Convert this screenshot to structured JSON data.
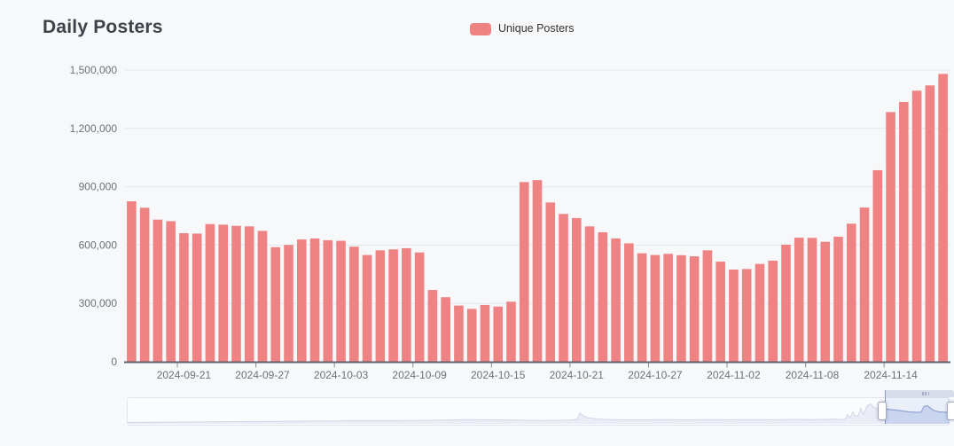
{
  "title": "Daily Posters",
  "legend": {
    "label": "Unique Posters",
    "color": "#ef8282"
  },
  "chart_data": {
    "type": "bar",
    "title": "Daily Posters",
    "series_name": "Unique Posters",
    "bar_color": "#ef8282",
    "grid": true,
    "legend_position": "top-center",
    "ylim": [
      0,
      1500000
    ],
    "ytick_values": [
      0,
      300000,
      600000,
      900000,
      1200000,
      1500000
    ],
    "ytick_labels": [
      "0",
      "300,000",
      "600,000",
      "900,000",
      "1,200,000",
      "1,500,000"
    ],
    "xtick_label_indices": [
      4,
      10,
      16,
      22,
      28,
      34,
      40,
      46,
      52,
      58
    ],
    "xtick_labels": [
      "2024-09-21",
      "2024-09-27",
      "2024-10-03",
      "2024-10-09",
      "2024-10-15",
      "2024-10-21",
      "2024-10-27",
      "2024-11-02",
      "2024-11-08",
      "2024-11-14"
    ],
    "x": [
      "2024-09-17",
      "2024-09-18",
      "2024-09-19",
      "2024-09-20",
      "2024-09-21",
      "2024-09-22",
      "2024-09-23",
      "2024-09-24",
      "2024-09-25",
      "2024-09-26",
      "2024-09-27",
      "2024-09-28",
      "2024-09-29",
      "2024-09-30",
      "2024-10-01",
      "2024-10-02",
      "2024-10-03",
      "2024-10-04",
      "2024-10-05",
      "2024-10-06",
      "2024-10-07",
      "2024-10-08",
      "2024-10-09",
      "2024-10-10",
      "2024-10-11",
      "2024-10-12",
      "2024-10-13",
      "2024-10-14",
      "2024-10-15",
      "2024-10-16",
      "2024-10-17",
      "2024-10-18",
      "2024-10-19",
      "2024-10-20",
      "2024-10-21",
      "2024-10-22",
      "2024-10-23",
      "2024-10-24",
      "2024-10-25",
      "2024-10-26",
      "2024-10-27",
      "2024-10-28",
      "2024-10-29",
      "2024-10-30",
      "2024-10-31",
      "2024-11-01",
      "2024-11-02",
      "2024-11-03",
      "2024-11-04",
      "2024-11-05",
      "2024-11-06",
      "2024-11-07",
      "2024-11-08",
      "2024-11-09",
      "2024-11-10",
      "2024-11-11",
      "2024-11-12",
      "2024-11-13",
      "2024-11-14",
      "2024-11-15",
      "2024-11-16",
      "2024-11-17",
      "2024-11-18"
    ],
    "values": [
      825000,
      792000,
      731000,
      723000,
      661000,
      659000,
      708000,
      705000,
      699000,
      696000,
      673000,
      589000,
      601000,
      629000,
      634000,
      625000,
      622000,
      592000,
      549000,
      573000,
      578000,
      584000,
      562000,
      369000,
      332000,
      289000,
      272000,
      292000,
      284000,
      309000,
      924000,
      934000,
      819000,
      760000,
      739000,
      696000,
      666000,
      634000,
      609000,
      558000,
      549000,
      555000,
      548000,
      542000,
      573000,
      515000,
      474000,
      477000,
      503000,
      520000,
      602000,
      638000,
      637000,
      617000,
      643000,
      710000,
      793000,
      985000,
      1284000,
      1336000,
      1394000,
      1421000,
      1480000
    ]
  },
  "datazoom": {
    "selected_start_pct": 92,
    "selected_end_pct": 100
  }
}
